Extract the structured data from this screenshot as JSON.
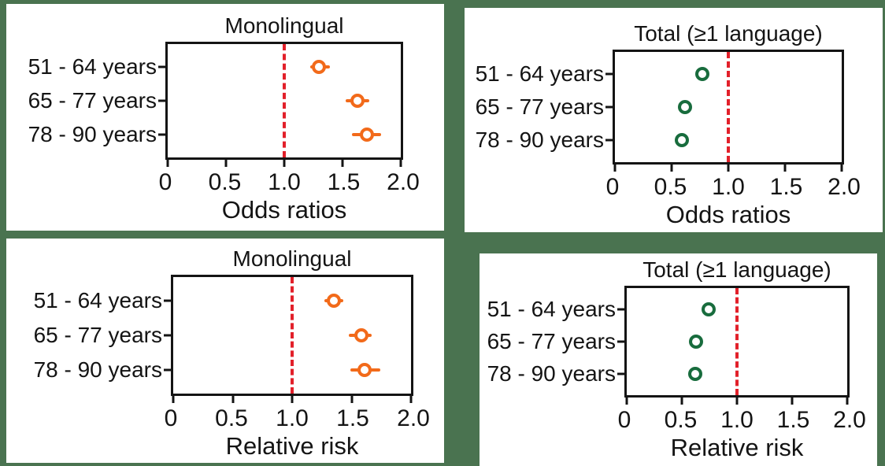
{
  "figure": {
    "background_color": "#4A7350",
    "frame_color": "#141414",
    "reference_line_color": "#E2202A"
  },
  "chart_data": [
    {
      "type": "scatter",
      "title": "Monolingual",
      "xlabel": "Odds ratios",
      "xlim": [
        0,
        2.0
      ],
      "xticks": [
        0,
        0.5,
        1.0,
        1.5,
        2.0
      ],
      "xtick_labels": [
        "0",
        "0.5",
        "1.0",
        "1.5",
        "2.0"
      ],
      "reference_line_x": 1.0,
      "marker_color": "#F26A1A",
      "categories": [
        "51 - 64 years",
        "65 - 77 years",
        "78 - 90 years"
      ],
      "points": [
        {
          "label": "51 - 64 years",
          "value": 1.3,
          "ci_low": 1.22,
          "ci_high": 1.39
        },
        {
          "label": "65 - 77 years",
          "value": 1.63,
          "ci_low": 1.53,
          "ci_high": 1.73
        },
        {
          "label": "78 - 90 years",
          "value": 1.71,
          "ci_low": 1.58,
          "ci_high": 1.83
        }
      ]
    },
    {
      "type": "scatter",
      "title": "Total (≥1 language)",
      "xlabel": "Odds ratios",
      "xlim": [
        0,
        2.0
      ],
      "xticks": [
        0,
        0.5,
        1.0,
        1.5,
        2.0
      ],
      "xtick_labels": [
        "0",
        "0.5",
        "1.0",
        "1.5",
        "2.0"
      ],
      "reference_line_x": 1.0,
      "marker_color": "#186C3D",
      "categories": [
        "51 - 64 years",
        "65 - 77 years",
        "78 - 90 years"
      ],
      "points": [
        {
          "label": "51 - 64 years",
          "value": 0.77,
          "ci_low": 0.73,
          "ci_high": 0.82
        },
        {
          "label": "65 - 77 years",
          "value": 0.62,
          "ci_low": 0.59,
          "ci_high": 0.65
        },
        {
          "label": "78 - 90 years",
          "value": 0.59,
          "ci_low": 0.55,
          "ci_high": 0.62
        }
      ]
    },
    {
      "type": "scatter",
      "title": "Monolingual",
      "xlabel": "Relative risk",
      "xlim": [
        0,
        2.0
      ],
      "xticks": [
        0,
        0.5,
        1.0,
        1.5,
        2.0
      ],
      "xtick_labels": [
        "0",
        "0.5",
        "1.0",
        "1.5",
        "2.0"
      ],
      "reference_line_x": 1.0,
      "marker_color": "#F26A1A",
      "categories": [
        "51 - 64 years",
        "65 - 77 years",
        "78 - 90 years"
      ],
      "points": [
        {
          "label": "51 - 64 years",
          "value": 1.35,
          "ci_low": 1.27,
          "ci_high": 1.43
        },
        {
          "label": "65 - 77 years",
          "value": 1.58,
          "ci_low": 1.48,
          "ci_high": 1.67
        },
        {
          "label": "78 - 90 years",
          "value": 1.61,
          "ci_low": 1.49,
          "ci_high": 1.74
        }
      ]
    },
    {
      "type": "scatter",
      "title": "Total (≥1 language)",
      "xlabel": "Relative risk",
      "xlim": [
        0,
        2.0
      ],
      "xticks": [
        0,
        0.5,
        1.0,
        1.5,
        2.0
      ],
      "xtick_labels": [
        "0",
        "0.5",
        "1.0",
        "1.5",
        "2.0"
      ],
      "reference_line_x": 1.0,
      "marker_color": "#186C3D",
      "categories": [
        "51 - 64 years",
        "65 - 77 years",
        "78 - 90 years"
      ],
      "points": [
        {
          "label": "51 - 64 years",
          "value": 0.74,
          "ci_low": 0.7,
          "ci_high": 0.78
        },
        {
          "label": "65 - 77 years",
          "value": 0.63,
          "ci_low": 0.6,
          "ci_high": 0.66
        },
        {
          "label": "78 - 90 years",
          "value": 0.62,
          "ci_low": 0.58,
          "ci_high": 0.65
        }
      ]
    }
  ]
}
